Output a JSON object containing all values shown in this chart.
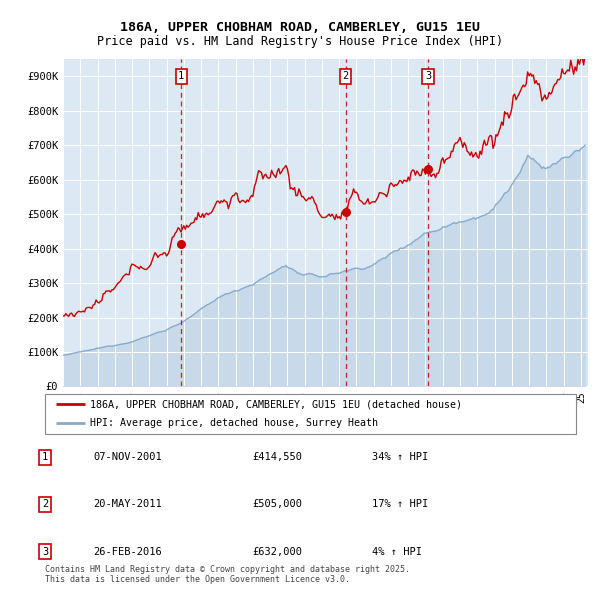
{
  "title_line1": "186A, UPPER CHOBHAM ROAD, CAMBERLEY, GU15 1EU",
  "title_line2": "Price paid vs. HM Land Registry's House Price Index (HPI)",
  "red_line_color": "#cc0000",
  "blue_line_color": "#88aacc",
  "blue_fill_color": "#c8daea",
  "vline_color": "#cc0000",
  "sale_dates": [
    "2001-11-07",
    "2011-05-20",
    "2016-02-26"
  ],
  "sale_prices": [
    414550,
    505000,
    632000
  ],
  "sale_labels": [
    "1",
    "2",
    "3"
  ],
  "legend_red": "186A, UPPER CHOBHAM ROAD, CAMBERLEY, GU15 1EU (detached house)",
  "legend_blue": "HPI: Average price, detached house, Surrey Heath",
  "table_rows": [
    [
      "1",
      "07-NOV-2001",
      "£414,550",
      "34% ↑ HPI"
    ],
    [
      "2",
      "20-MAY-2011",
      "£505,000",
      "17% ↑ HPI"
    ],
    [
      "3",
      "26-FEB-2016",
      "£632,000",
      "4% ↑ HPI"
    ]
  ],
  "footnote": "Contains HM Land Registry data © Crown copyright and database right 2025.\nThis data is licensed under the Open Government Licence v3.0.",
  "ylim": [
    0,
    950000
  ],
  "yticks": [
    0,
    100000,
    200000,
    300000,
    400000,
    500000,
    600000,
    700000,
    800000,
    900000
  ],
  "ytick_labels": [
    "£0",
    "£100K",
    "£200K",
    "£300K",
    "£400K",
    "£500K",
    "£600K",
    "£700K",
    "£800K",
    "£900K"
  ],
  "xstart": "1995-01-01",
  "xend": "2025-06-01",
  "plot_bg": "#dce9f5"
}
